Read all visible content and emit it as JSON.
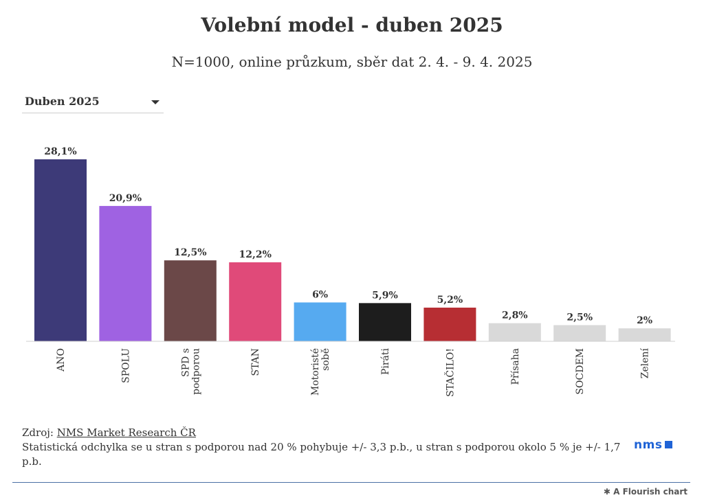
{
  "header": {
    "title": "Volební model - duben 2025",
    "subtitle": "N=1000, online průzkum, sběr dat 2. 4. - 9. 4. 2025"
  },
  "controls": {
    "dropdown_selected": "Duben 2025"
  },
  "chart_data": {
    "type": "bar",
    "title": "Volební model - duben 2025",
    "subtitle": "N=1000, online průzkum, sběr dat 2. 4. - 9. 4. 2025",
    "categories": [
      "ANO",
      "SPOLU",
      "SPD s podporou",
      "STAN",
      "Motoristé sobě",
      "Piráti",
      "STAČILO!",
      "Přísaha",
      "SOCDEM",
      "Zelení"
    ],
    "category_lines": [
      [
        "ANO"
      ],
      [
        "SPOLU"
      ],
      [
        "SPD s",
        "podporou"
      ],
      [
        "STAN"
      ],
      [
        "Motoristé",
        "sobě"
      ],
      [
        "Piráti"
      ],
      [
        "STAČILO!"
      ],
      [
        "Přísaha"
      ],
      [
        "SOCDEM"
      ],
      [
        "Zelení"
      ]
    ],
    "values": [
      28.1,
      20.9,
      12.5,
      12.2,
      6,
      5.9,
      5.2,
      2.8,
      2.5,
      2
    ],
    "data_labels": [
      "28,1%",
      "20,9%",
      "12,5%",
      "12,2%",
      "6%",
      "5,9%",
      "5,2%",
      "2,8%",
      "2,5%",
      "2%"
    ],
    "colors": [
      "#3d3a78",
      "#9f62e2",
      "#6b4848",
      "#e04a79",
      "#56aaf0",
      "#1d1d1d",
      "#b72e33",
      "#d9d9d9",
      "#d9d9d9",
      "#d9d9d9"
    ],
    "ylim": [
      0,
      28.1
    ],
    "grid": false,
    "legend": "none",
    "xlabel": "",
    "ylabel": ""
  },
  "footer": {
    "source_prefix": "Zdroj: ",
    "source_link": "NMS Market Research ČR",
    "note": "Statistická odchylka se u stran s podporou nad 20 % pohybuje +/- 3,3 p.b., u stran s podporou okolo 5 % je +/- 1,7 p.b.",
    "logo_text": "nms",
    "flourish_text": "A Flourish chart"
  }
}
